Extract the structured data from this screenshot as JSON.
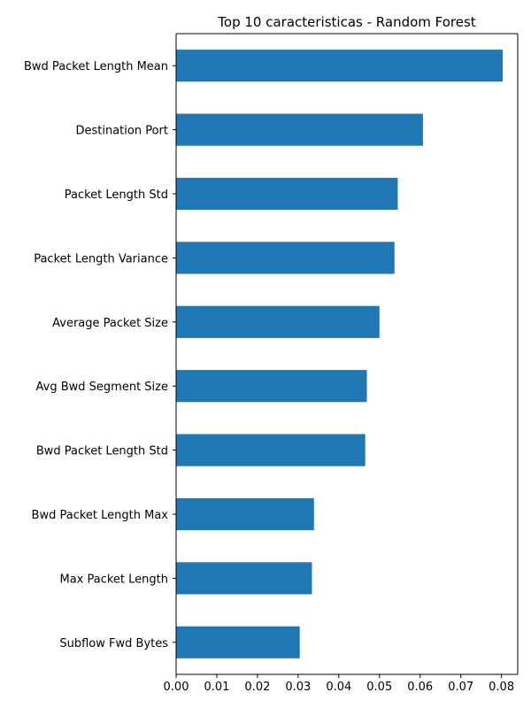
{
  "chart_data": {
    "type": "bar",
    "orientation": "horizontal",
    "title": "Top 10 caracteristicas - Random Forest",
    "xlabel": "",
    "ylabel": "",
    "categories": [
      "Bwd Packet Length Mean",
      "Destination Port",
      "Packet Length Std",
      "Packet Length Variance",
      "Average Packet Size",
      "Avg Bwd Segment Size",
      "Bwd Packet Length Std",
      "Bwd Packet Length Max",
      "Max Packet Length",
      "Subflow Fwd Bytes"
    ],
    "values": [
      0.0803,
      0.0607,
      0.0545,
      0.0537,
      0.05,
      0.0469,
      0.0465,
      0.0339,
      0.0334,
      0.0304
    ],
    "xlim": [
      0,
      0.084
    ],
    "xticks": [
      "0.00",
      "0.01",
      "0.02",
      "0.03",
      "0.04",
      "0.05",
      "0.06",
      "0.07",
      "0.08"
    ],
    "xtick_values": [
      0,
      0.01,
      0.02,
      0.03,
      0.04,
      0.05,
      0.06,
      0.07,
      0.08
    ],
    "grid": false,
    "bar_color": "#1f77b4",
    "axis_color": "#000000"
  }
}
